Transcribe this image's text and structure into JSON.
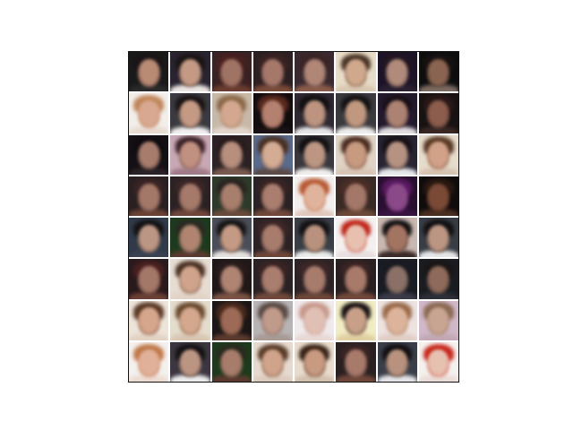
{
  "grid": {
    "rows": 8,
    "cols": 8,
    "tiles": [
      {
        "bg": "#1a1a1a",
        "skin": "#b98a74",
        "hair": "#1b1416",
        "body": "#2a2a2a"
      },
      {
        "bg": "#2a2430",
        "skin": "#c49a84",
        "hair": "#1a1414",
        "body": "#e8e4e2"
      },
      {
        "bg": "#3a2224",
        "skin": "#a07464",
        "hair": "#4a2020",
        "body": "#6a3c30"
      },
      {
        "bg": "#2c2022",
        "skin": "#a6786a",
        "hair": "#3a2222",
        "body": "#7a4a38"
      },
      {
        "bg": "#3a2a30",
        "skin": "#b08676",
        "hair": "#3a2424",
        "body": "#8a5a4a"
      },
      {
        "bg": "#e8dcc8",
        "skin": "#d0a88c",
        "hair": "#4a3426",
        "body": "#d8c8b0"
      },
      {
        "bg": "#1e1428",
        "skin": "#b08a7a",
        "hair": "#221622",
        "body": "#2a2030"
      },
      {
        "bg": "#0e0e0e",
        "skin": "#8a6450",
        "hair": "#181212",
        "body": "#7a6a60"
      },
      {
        "bg": "#f2eeea",
        "skin": "#d8a890",
        "hair": "#c0865a",
        "body": "#e8dad0"
      },
      {
        "bg": "#3a3a40",
        "skin": "#c49a84",
        "hair": "#1a1414",
        "body": "#f0f0f0"
      },
      {
        "bg": "#c8b8a8",
        "skin": "#d4a890",
        "hair": "#8a6a48",
        "body": "#e2d6cc"
      },
      {
        "bg": "#120c0e",
        "skin": "#b48070",
        "hair": "#5a2a1e",
        "body": "#1a1214"
      },
      {
        "bg": "#302832",
        "skin": "#bc9480",
        "hair": "#121012",
        "body": "#e6e6e8"
      },
      {
        "bg": "#3c3a3e",
        "skin": "#c09880",
        "hair": "#141214",
        "body": "#ececec"
      },
      {
        "bg": "#241a2e",
        "skin": "#ac8272",
        "hair": "#1a1018",
        "body": "#e0dce0"
      },
      {
        "bg": "#181212",
        "skin": "#8c5c4c",
        "hair": "#2a1818",
        "body": "#3a2824"
      },
      {
        "bg": "#141014",
        "skin": "#a87c6c",
        "hair": "#100c10",
        "body": "#2a2226"
      },
      {
        "bg": "#c8a8b4",
        "skin": "#c09080",
        "hair": "#3a2228",
        "body": "#a07a88"
      },
      {
        "bg": "#2c2224",
        "skin": "#b88e7c",
        "hair": "#2a1c1e",
        "body": "#7a5a50"
      },
      {
        "bg": "#5a6a8a",
        "skin": "#d4ac94",
        "hair": "#4a3022",
        "body": "#5a4a48"
      },
      {
        "bg": "#3a383c",
        "skin": "#bc9682",
        "hair": "#121012",
        "body": "#f0eeee"
      },
      {
        "bg": "#e0d2c4",
        "skin": "#c89a80",
        "hair": "#4a2c20",
        "body": "#d8c4b4"
      },
      {
        "bg": "#282432",
        "skin": "#b69282",
        "hair": "#161216",
        "body": "#e6e6ea"
      },
      {
        "bg": "#e6dccc",
        "skin": "#d2a288",
        "hair": "#5a3a26",
        "body": "#d6c2b0"
      },
      {
        "bg": "#2a2022",
        "skin": "#a47868",
        "hair": "#3a2424",
        "body": "#6a4234"
      },
      {
        "bg": "#2c2224",
        "skin": "#a67a6a",
        "hair": "#3c2626",
        "body": "#70463a"
      },
      {
        "bg": "#2e3a2a",
        "skin": "#a87e6c",
        "hair": "#2a2420",
        "body": "#6a4a3a"
      },
      {
        "bg": "#2a2224",
        "skin": "#aa7e6e",
        "hair": "#3a2424",
        "body": "#70483a"
      },
      {
        "bg": "#f2eeee",
        "skin": "#e0b49c",
        "hair": "#b85a34",
        "body": "#e0c8bc"
      },
      {
        "bg": "#3a2a26",
        "skin": "#a47868",
        "hair": "#4a2e26",
        "body": "#6c4838"
      },
      {
        "bg": "#2a1030",
        "skin": "#8a4a8a",
        "hair": "#5a1a60",
        "body": "#3a1440"
      },
      {
        "bg": "#100c0c",
        "skin": "#7a4a36",
        "hair": "#2a1810",
        "body": "#4a2e20"
      },
      {
        "bg": "#303a48",
        "skin": "#bc9684",
        "hair": "#141214",
        "body": "#3a4252"
      },
      {
        "bg": "#1e3a1e",
        "skin": "#b08470",
        "hair": "#2a2a22",
        "body": "#5a3a30"
      },
      {
        "bg": "#4a4e58",
        "skin": "#c49a84",
        "hair": "#181414",
        "body": "#e4e0de"
      },
      {
        "bg": "#2c2226",
        "skin": "#a87c6c",
        "hair": "#3c2628",
        "body": "#6c4638"
      },
      {
        "bg": "#3a3e46",
        "skin": "#b8927e",
        "hair": "#141214",
        "body": "#ececec"
      },
      {
        "bg": "#f4f0f0",
        "skin": "#e8c0b0",
        "hair": "#c0281c",
        "body": "#e8dede"
      },
      {
        "bg": "#c8b8b0",
        "skin": "#a47462",
        "hair": "#141012",
        "body": "#3a2a28"
      },
      {
        "bg": "#383c44",
        "skin": "#bc9682",
        "hair": "#121012",
        "body": "#e6e6e8"
      },
      {
        "bg": "#2a1a1c",
        "skin": "#a47868",
        "hair": "#4a2020",
        "body": "#6a4034"
      },
      {
        "bg": "#e6dcd2",
        "skin": "#d0a48c",
        "hair": "#4a3022",
        "body": "#e2d2c6"
      },
      {
        "bg": "#201818",
        "skin": "#b08472",
        "hair": "#2a1c1c",
        "body": "#7a5244"
      },
      {
        "bg": "#2a2224",
        "skin": "#aa7e6e",
        "hair": "#3a2424",
        "body": "#70483a"
      },
      {
        "bg": "#2e2426",
        "skin": "#a87c6c",
        "hair": "#3c2626",
        "body": "#6e4638"
      },
      {
        "bg": "#2a2022",
        "skin": "#a87a6a",
        "hair": "#3a2424",
        "body": "#72483a"
      },
      {
        "bg": "#1a1c24",
        "skin": "#8a7066",
        "hair": "#1a1a22",
        "body": "#3a3a48"
      },
      {
        "bg": "#1a1c22",
        "skin": "#8e6a5a",
        "hair": "#1a1616",
        "body": "#2c2e38"
      },
      {
        "bg": "#eee4da",
        "skin": "#d6a68c",
        "hair": "#5a3a26",
        "body": "#e2d2c2"
      },
      {
        "bg": "#e4dccc",
        "skin": "#d4a88c",
        "hair": "#6a4a30",
        "body": "#d8c6b2"
      },
      {
        "bg": "#1c1616",
        "skin": "#9c6a56",
        "hair": "#4a2a1c",
        "body": "#5a3a2c"
      },
      {
        "bg": "#b8b4b6",
        "skin": "#c09a8a",
        "hair": "#5a4a44",
        "body": "#a89a94"
      },
      {
        "bg": "#f0eaec",
        "skin": "#e0c0b4",
        "hair": "#c89a8c",
        "body": "#e6d8d4"
      },
      {
        "bg": "#f2ecc4",
        "skin": "#c8a088",
        "hair": "#1a1414",
        "body": "#e0d0a0"
      },
      {
        "bg": "#ece2e0",
        "skin": "#dcb49c",
        "hair": "#9a6a4a",
        "body": "#e0cec4"
      },
      {
        "bg": "#d0b8c8",
        "skin": "#c8a492",
        "hair": "#8a6a52",
        "body": "#c2a8b4"
      },
      {
        "bg": "#f4f0ee",
        "skin": "#e0b098",
        "hair": "#c0784a",
        "body": "#ecdcd2"
      },
      {
        "bg": "#3c3640",
        "skin": "#bc9482",
        "hair": "#141214",
        "body": "#ececee"
      },
      {
        "bg": "#1e3a1c",
        "skin": "#a87c6a",
        "hair": "#2a2a20",
        "body": "#5a3a2e"
      },
      {
        "bg": "#e6dad0",
        "skin": "#d0a48a",
        "hair": "#5a3c28",
        "body": "#dccbbe"
      },
      {
        "bg": "#e8dccc",
        "skin": "#c89a80",
        "hair": "#3a2418",
        "body": "#d4c0ae"
      },
      {
        "bg": "#2a2022",
        "skin": "#a87a6a",
        "hair": "#3a2424",
        "body": "#70463a"
      },
      {
        "bg": "#3a3e48",
        "skin": "#b8927e",
        "hair": "#121012",
        "body": "#e4e4e8"
      },
      {
        "bg": "#f4f0ee",
        "skin": "#e6c0b0",
        "hair": "#c8281c",
        "body": "#eadcd8"
      }
    ]
  }
}
